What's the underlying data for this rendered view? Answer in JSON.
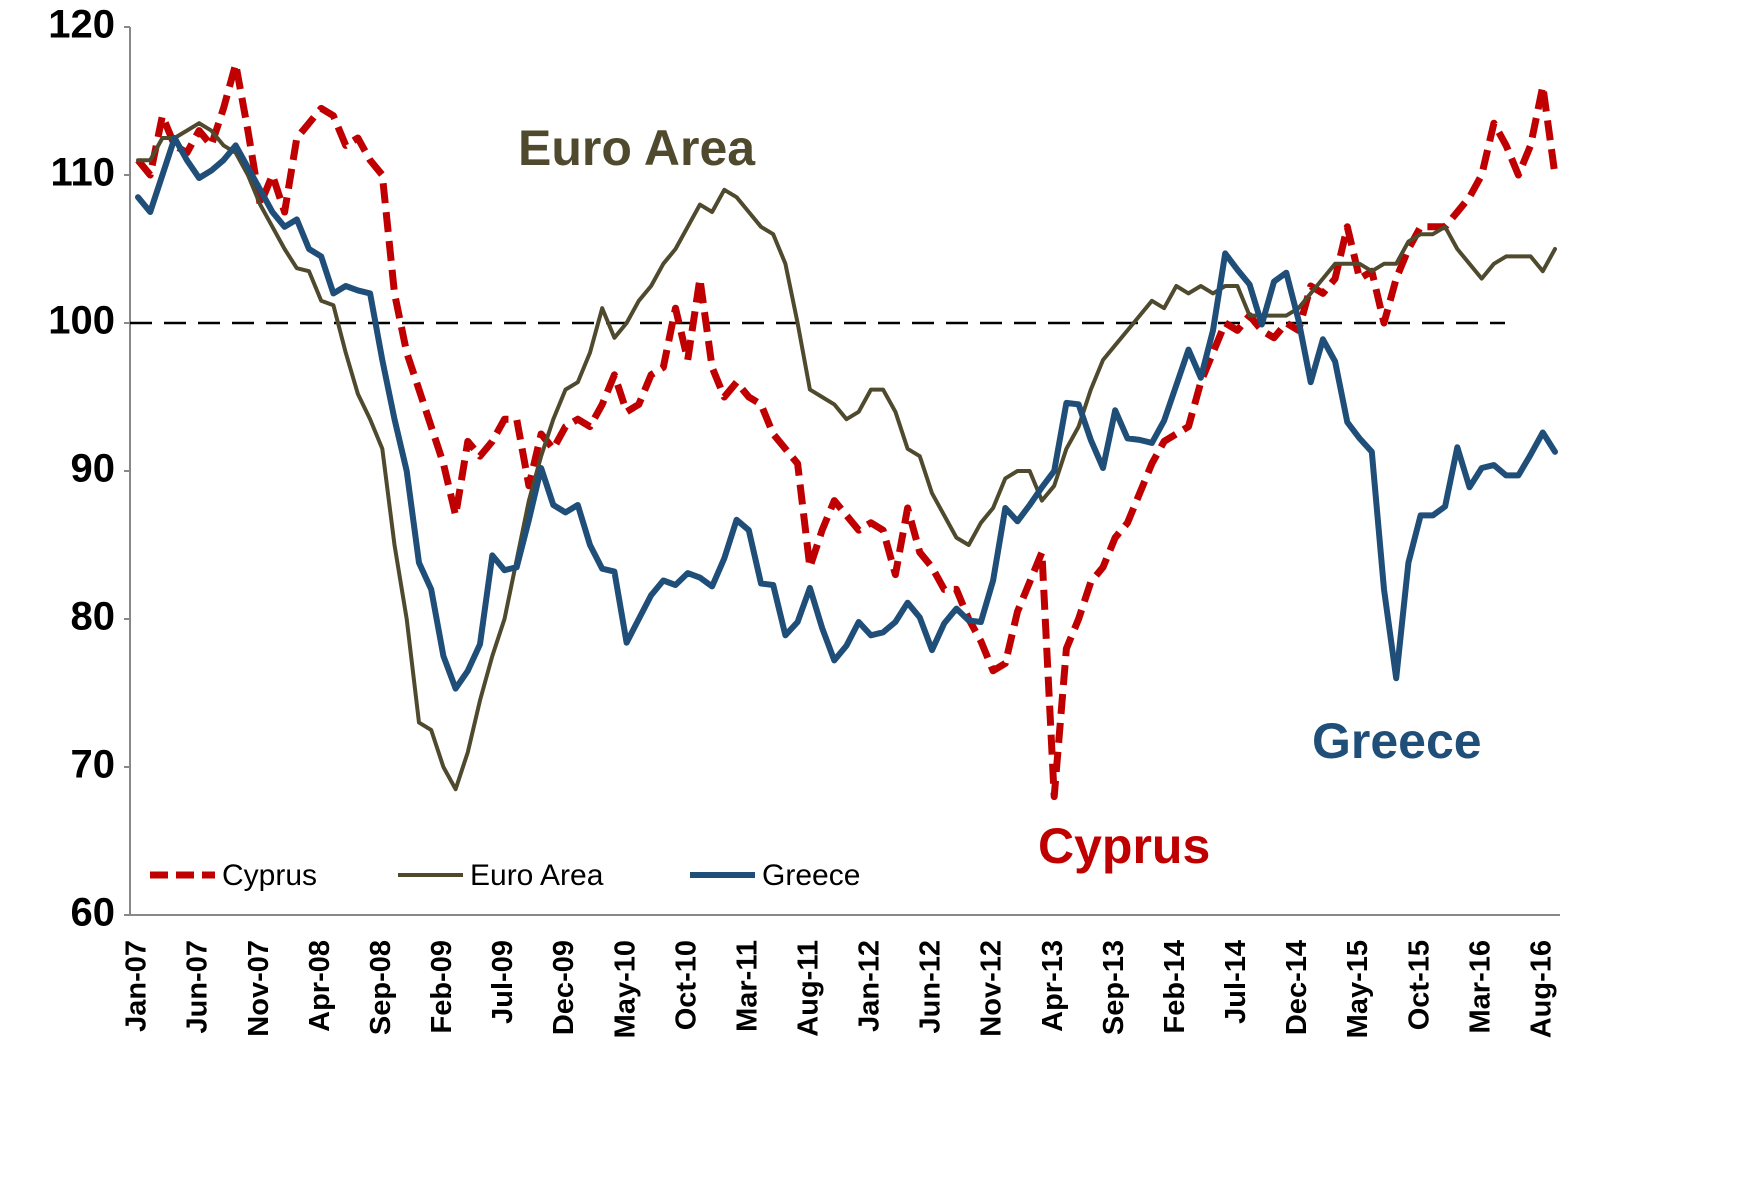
{
  "chart_data": {
    "type": "line",
    "categories": [
      "Jan-07",
      null,
      null,
      null,
      null,
      "Jun-07",
      null,
      null,
      null,
      null,
      "Nov-07",
      null,
      null,
      null,
      null,
      "Apr-08",
      null,
      null,
      null,
      null,
      "Sep-08",
      null,
      null,
      null,
      null,
      "Feb-09",
      null,
      null,
      null,
      null,
      "Jul-09",
      null,
      null,
      null,
      null,
      "Dec-09",
      null,
      null,
      null,
      null,
      "May-10",
      null,
      null,
      null,
      null,
      "Oct-10",
      null,
      null,
      null,
      null,
      "Mar-11",
      null,
      null,
      null,
      null,
      "Aug-11",
      null,
      null,
      null,
      null,
      "Jan-12",
      null,
      null,
      null,
      null,
      "Jun-12",
      null,
      null,
      null,
      null,
      "Nov-12",
      null,
      null,
      null,
      null,
      "Apr-13",
      null,
      null,
      null,
      null,
      "Sep-13",
      null,
      null,
      null,
      null,
      "Feb-14",
      null,
      null,
      null,
      null,
      "Jul-14",
      null,
      null,
      null,
      null,
      "Dec-14",
      null,
      null,
      null,
      null,
      "May-15",
      null,
      null,
      null,
      null,
      "Oct-15",
      null,
      null,
      null,
      null,
      "Mar-16",
      null,
      null,
      null,
      null,
      "Aug-16",
      null
    ],
    "series": [
      {
        "name": "Cyprus",
        "color": "#c00000",
        "dashed": true,
        "values": [
          111,
          110,
          114,
          112,
          111.5,
          113,
          112,
          114.5,
          117.5,
          113,
          108,
          110,
          107.5,
          112.5,
          113.5,
          114.5,
          114,
          112,
          112.5,
          111,
          110,
          102,
          98,
          95.5,
          93,
          90.5,
          87,
          92,
          91,
          92,
          93.5,
          93.5,
          89,
          92.5,
          91.5,
          93,
          93.5,
          93,
          94.5,
          96.5,
          94,
          94.5,
          96.5,
          97,
          101,
          97.5,
          103,
          97,
          95,
          96,
          95,
          94.5,
          92.5,
          91.5,
          90.5,
          83.5,
          86,
          88,
          87,
          86,
          86.5,
          86,
          83,
          87.5,
          84.5,
          83.5,
          82,
          82,
          80,
          78.5,
          76.5,
          77,
          80.5,
          82.5,
          84.5,
          68,
          78,
          80,
          82.5,
          83.5,
          85.5,
          86.5,
          88.5,
          90.5,
          92,
          92.5,
          93,
          96,
          98,
          100,
          99.5,
          100.5,
          99.5,
          99,
          100,
          99.5,
          102.5,
          102,
          103,
          106.5,
          103,
          103.5,
          100,
          103,
          105,
          106.5,
          106.5,
          106.5,
          107.5,
          108.5,
          110,
          113.5,
          112,
          110,
          112,
          116,
          110
        ]
      },
      {
        "name": "Euro Area",
        "color": "#4f4a2e",
        "dashed": false,
        "values": [
          111,
          111,
          112.5,
          112.5,
          113,
          113.5,
          113,
          112,
          111.5,
          110,
          108,
          106.5,
          105,
          103.7,
          103.5,
          101.5,
          101.2,
          98,
          95.2,
          93.5,
          91.5,
          85,
          80,
          73,
          72.5,
          70,
          68.5,
          71,
          74.5,
          77.5,
          80,
          84,
          88,
          91,
          93.5,
          95.5,
          96,
          98,
          101,
          99,
          100,
          101.5,
          102.5,
          104,
          105,
          106.5,
          108,
          107.5,
          109,
          108.5,
          107.5,
          106.5,
          106,
          104,
          100,
          95.5,
          95,
          94.5,
          93.5,
          94,
          95.5,
          95.5,
          94,
          91.5,
          91,
          88.5,
          87,
          85.5,
          85,
          86.5,
          87.5,
          89.5,
          90,
          90,
          88,
          89,
          91.5,
          93,
          95.5,
          97.5,
          98.5,
          99.5,
          100.5,
          101.5,
          101,
          102.5,
          102,
          102.5,
          102,
          102.5,
          102.5,
          100.5,
          100.5,
          100.5,
          100.5,
          101,
          102,
          103,
          104,
          104,
          104,
          103.5,
          104,
          104,
          105.5,
          106,
          106,
          106.5,
          105,
          104,
          103,
          104,
          104.5,
          104.5,
          104.5,
          103.5,
          105
        ]
      },
      {
        "name": "Greece",
        "color": "#1f4e79",
        "dashed": false,
        "values": [
          108.5,
          107.5,
          110,
          112.5,
          111,
          109.8,
          110.3,
          111,
          112,
          110.5,
          109,
          107.5,
          106.5,
          107,
          105,
          104.5,
          102,
          102.5,
          102.2,
          102,
          97.5,
          93.5,
          90,
          83.8,
          82,
          77.5,
          75.3,
          76.5,
          78.3,
          84.3,
          83.3,
          83.5,
          86.7,
          90.2,
          87.7,
          87.2,
          87.7,
          85,
          83.4,
          83.2,
          78.4,
          80,
          81.6,
          82.6,
          82.3,
          83.1,
          82.8,
          82.2,
          84.1,
          86.7,
          86,
          82.4,
          82.3,
          78.9,
          79.8,
          82.1,
          79.4,
          77.2,
          78.2,
          79.8,
          78.9,
          79.1,
          79.8,
          81.1,
          80.1,
          77.9,
          79.7,
          80.7,
          79.9,
          79.8,
          82.6,
          87.5,
          86.6,
          87.7,
          88.9,
          90,
          94.6,
          94.5,
          92.1,
          90.2,
          94.1,
          92.2,
          92.1,
          91.9,
          93.4,
          95.8,
          98.2,
          96.3,
          99.5,
          104.7,
          103.6,
          102.6,
          99.9,
          102.8,
          103.4,
          100.2,
          96,
          98.9,
          97.4,
          93.3,
          92.2,
          91.3,
          82,
          76,
          83.8,
          87,
          87,
          87.6,
          91.6,
          88.9,
          90.2,
          90.4,
          89.7,
          89.7,
          91.1,
          92.6,
          91.3
        ]
      }
    ],
    "ylim": [
      60,
      120
    ],
    "yticks": [
      60,
      70,
      80,
      90,
      100,
      110,
      120
    ],
    "reference_line": 100,
    "legend": "lower left",
    "annotations": [
      {
        "text": "Euro Area",
        "color": "#4f4a2e"
      },
      {
        "text": "Cyprus",
        "color": "#c00000"
      },
      {
        "text": "Greece",
        "color": "#1f4e79"
      }
    ]
  }
}
